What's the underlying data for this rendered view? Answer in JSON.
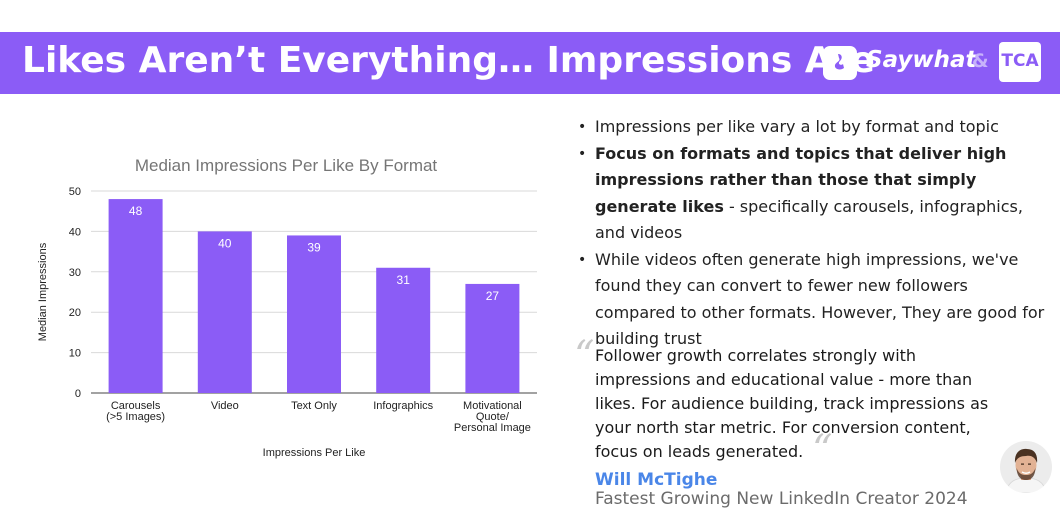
{
  "header": {
    "title": "Likes Aren’t Everything… Impressions Are",
    "logo_name": "Saywhat",
    "ampersand": "&",
    "partner": "TCA"
  },
  "chart_data": {
    "type": "bar",
    "title": "Median Impressions Per Like By Format",
    "xlabel": "Impressions Per Like",
    "ylabel": "Median Impressions",
    "categories": [
      [
        "Carousels",
        "(>5 Images)"
      ],
      [
        "Video"
      ],
      [
        "Text Only"
      ],
      [
        "Infographics"
      ],
      [
        "Motivational",
        "Quote/",
        "Personal Image"
      ]
    ],
    "values": [
      48,
      40,
      39,
      31,
      27
    ],
    "data_labels": [
      "48",
      "40",
      "39",
      "31",
      "27"
    ],
    "ylim": [
      0,
      50
    ],
    "yticks": [
      0,
      10,
      20,
      30,
      40,
      50
    ],
    "grid": true,
    "bar_color": "#8b5cf6"
  },
  "bullets": [
    [
      {
        "t": "Impressions per like vary a lot by format and topic",
        "b": false
      }
    ],
    [
      {
        "t": "Focus on formats and topics that deliver high impressions rather than those that simply generate likes",
        "b": true
      },
      {
        "t": " - specifically carousels, infographics, and videos",
        "b": false
      }
    ],
    [
      {
        "t": "While videos often generate high impressions, we've found they can convert to fewer new followers compared to other formats. However, They are good for building trust",
        "b": false
      }
    ]
  ],
  "quote": {
    "open_mark": "“",
    "close_mark": "“",
    "text": "Follower growth correlates strongly with impressions and educational value - more than likes. For audience building, track impressions as your north star metric. For conversion content, focus on leads generated.",
    "author": "Will McTighe",
    "author_title": "Fastest Growing New LinkedIn Creator 2024"
  },
  "colors": {
    "brand_purple": "#8b5cf6",
    "author_blue": "#4a86e8"
  }
}
